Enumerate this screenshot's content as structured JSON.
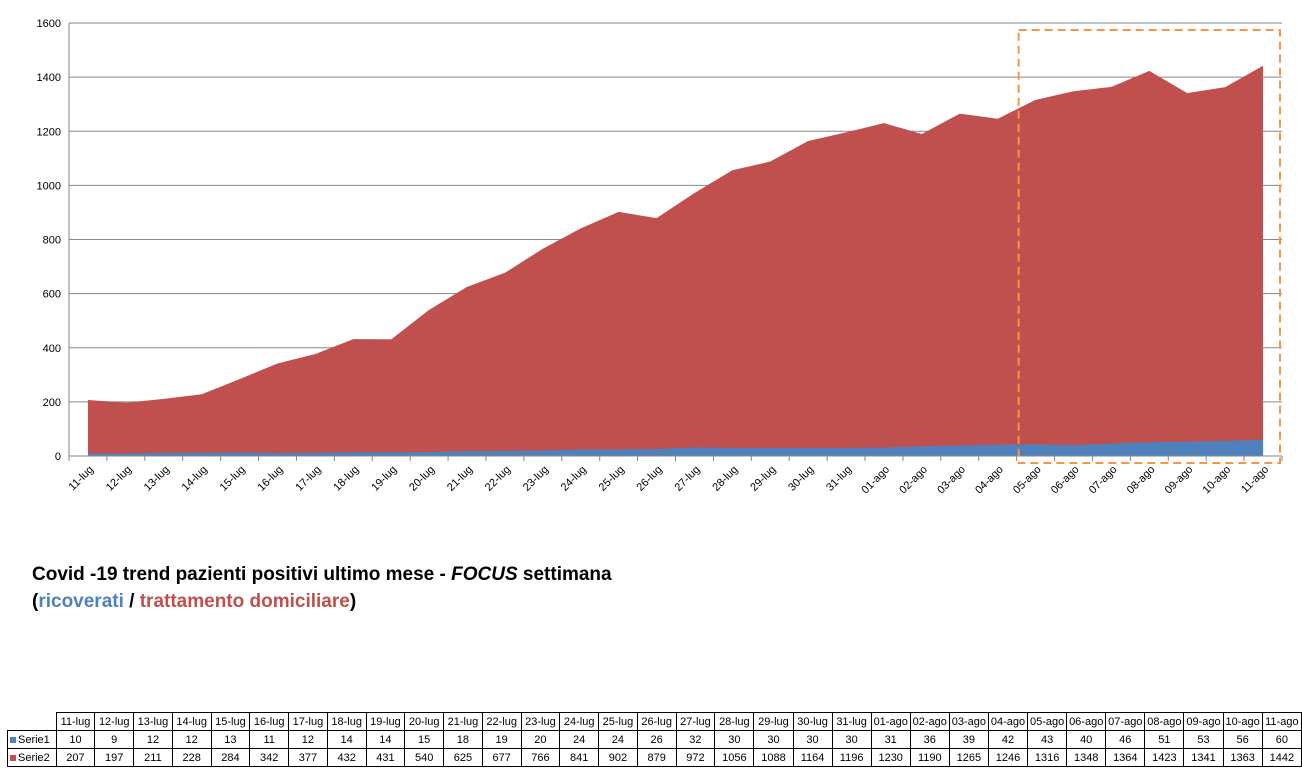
{
  "chart_data": {
    "type": "area",
    "stacked": true,
    "categories": [
      "11-lug",
      "12-lug",
      "13-lug",
      "14-lug",
      "15-lug",
      "16-lug",
      "17-lug",
      "18-lug",
      "19-lug",
      "20-lug",
      "21-lug",
      "22-lug",
      "23-lug",
      "24-lug",
      "25-lug",
      "26-lug",
      "27-lug",
      "28-lug",
      "29-lug",
      "30-lug",
      "31-lug",
      "01-ago",
      "02-ago",
      "03-ago",
      "04-ago",
      "05-ago",
      "06-ago",
      "07-ago",
      "08-ago",
      "09-ago",
      "10-ago",
      "11-ago"
    ],
    "series": [
      {
        "name": "Serie1",
        "color": "#4f81bd",
        "values": [
          10,
          9,
          12,
          12,
          13,
          11,
          12,
          14,
          14,
          15,
          18,
          19,
          20,
          24,
          24,
          26,
          32,
          30,
          30,
          30,
          30,
          31,
          36,
          39,
          42,
          43,
          40,
          46,
          51,
          53,
          56,
          60
        ]
      },
      {
        "name": "Serie2",
        "color": "#c0504d",
        "values": [
          207,
          197,
          211,
          228,
          284,
          342,
          377,
          432,
          431,
          540,
          625,
          677,
          766,
          841,
          902,
          879,
          972,
          1056,
          1088,
          1164,
          1196,
          1230,
          1190,
          1265,
          1246,
          1316,
          1348,
          1364,
          1423,
          1341,
          1363,
          1442
        ]
      }
    ],
    "ylim": [
      0,
      1600
    ],
    "yticks": [
      "0",
      "200",
      "400",
      "600",
      "800",
      "1000",
      "1200",
      "1400",
      "1600"
    ],
    "grid": true,
    "focus_range": [
      "05-ago",
      "11-ago"
    ],
    "focus_color": "#f79646"
  },
  "caption": {
    "line1_prefix": "Covid -19 trend pazienti positivi ultimo mese - ",
    "line1_focus": "FOCUS",
    "line1_suffix": " settimana",
    "open_paren": "(",
    "ricoverati": "ricoverati",
    "separator": " / ",
    "trattamento": "trattamento domiciliare",
    "close_paren": ")"
  },
  "table": {
    "row_labels": [
      "Serie1",
      "Serie2"
    ]
  }
}
